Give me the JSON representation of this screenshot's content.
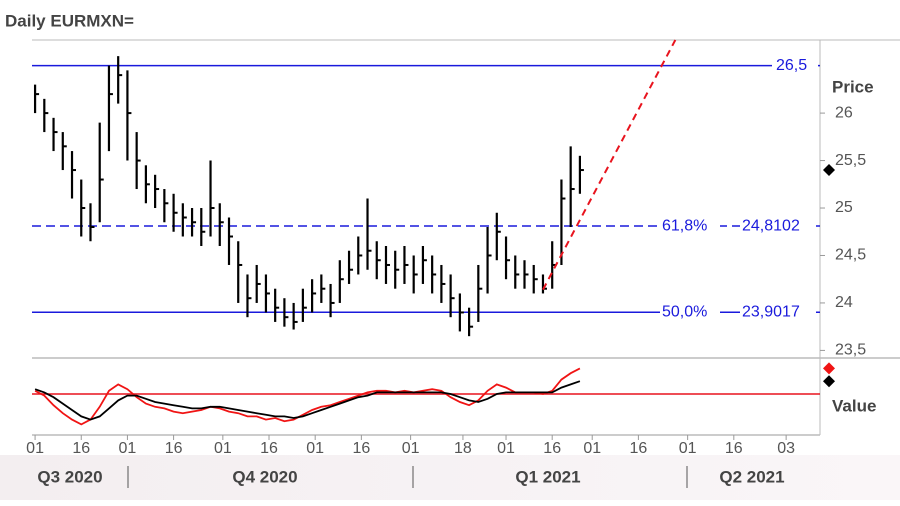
{
  "chart_data": {
    "type": "ohlc",
    "title": "Daily EURMXN=",
    "y_axis_label": "Price",
    "color": "#000000",
    "x": [
      "2020-09-01",
      "2020-09-04",
      "2020-09-07",
      "2020-09-10",
      "2020-09-13",
      "2020-09-16",
      "2020-09-19",
      "2020-09-22",
      "2020-09-25",
      "2020-09-28",
      "2020-10-01",
      "2020-10-04",
      "2020-10-07",
      "2020-10-10",
      "2020-10-13",
      "2020-10-16",
      "2020-10-19",
      "2020-10-22",
      "2020-10-25",
      "2020-10-28",
      "2020-10-31",
      "2020-11-03",
      "2020-11-06",
      "2020-11-09",
      "2020-11-12",
      "2020-11-15",
      "2020-11-18",
      "2020-11-21",
      "2020-11-24",
      "2020-11-27",
      "2020-11-30",
      "2020-12-03",
      "2020-12-06",
      "2020-12-09",
      "2020-12-12",
      "2020-12-15",
      "2020-12-18",
      "2020-12-21",
      "2020-12-24",
      "2020-12-27",
      "2020-12-30",
      "2021-01-02",
      "2021-01-05",
      "2021-01-08",
      "2021-01-11",
      "2021-01-14",
      "2021-01-17",
      "2021-01-20",
      "2021-01-23",
      "2021-01-26",
      "2021-01-29",
      "2021-02-01",
      "2021-02-04",
      "2021-02-07",
      "2021-02-10",
      "2021-02-13",
      "2021-02-16",
      "2021-02-19",
      "2021-02-22",
      "2021-02-25"
    ],
    "high": [
      26.3,
      26.15,
      25.95,
      25.8,
      25.6,
      25.3,
      25.05,
      25.9,
      26.5,
      26.6,
      26.45,
      25.8,
      25.45,
      25.35,
      25.2,
      25.15,
      25.05,
      25.0,
      25.0,
      25.5,
      25.05,
      24.9,
      24.65,
      24.3,
      24.4,
      24.3,
      24.15,
      24.05,
      24.0,
      24.15,
      24.25,
      24.3,
      24.2,
      24.45,
      24.55,
      24.7,
      25.1,
      24.65,
      24.6,
      24.55,
      24.6,
      24.5,
      24.6,
      24.5,
      24.4,
      24.3,
      24.1,
      23.95,
      24.4,
      24.8,
      24.95,
      24.7,
      24.5,
      24.45,
      24.4,
      24.3,
      24.65,
      25.3,
      25.65,
      25.55
    ],
    "low": [
      26.0,
      25.8,
      25.6,
      25.4,
      25.1,
      24.7,
      24.65,
      24.85,
      25.6,
      26.1,
      25.5,
      25.2,
      25.05,
      25.0,
      24.85,
      24.75,
      24.7,
      24.7,
      24.6,
      24.7,
      24.6,
      24.4,
      24.0,
      23.85,
      24.0,
      23.9,
      23.8,
      23.75,
      23.72,
      23.8,
      23.9,
      24.0,
      23.85,
      24.0,
      24.2,
      24.3,
      24.35,
      24.25,
      24.2,
      24.15,
      24.2,
      24.1,
      24.2,
      24.1,
      24.0,
      23.85,
      23.7,
      23.65,
      23.8,
      24.1,
      24.45,
      24.25,
      24.15,
      24.15,
      24.1,
      24.1,
      24.15,
      24.4,
      24.8,
      25.15
    ],
    "close": [
      26.2,
      26.0,
      25.8,
      25.65,
      25.4,
      25.0,
      24.8,
      25.3,
      26.2,
      26.4,
      26.0,
      25.5,
      25.25,
      25.2,
      25.05,
      24.95,
      24.9,
      24.85,
      24.75,
      25.0,
      24.85,
      24.7,
      24.4,
      24.05,
      24.2,
      24.1,
      23.95,
      23.85,
      23.8,
      23.95,
      24.1,
      24.15,
      24.0,
      24.25,
      24.35,
      24.5,
      24.55,
      24.45,
      24.4,
      24.35,
      24.4,
      24.3,
      24.45,
      24.3,
      24.2,
      24.05,
      23.9,
      23.75,
      24.15,
      24.5,
      24.75,
      24.45,
      24.3,
      24.3,
      24.25,
      24.15,
      24.4,
      25.1,
      25.2,
      25.4
    ],
    "xlim": [
      "2020-08-31",
      "2021-05-14"
    ],
    "ylim": [
      23.42,
      26.77
    ],
    "yticks": [
      {
        "value": 23.5,
        "label": "23,5"
      },
      24,
      {
        "value": 24.5,
        "label": "24,5"
      },
      25,
      {
        "value": 25.5,
        "label": "25,5"
      },
      26
    ],
    "xticks": [
      {
        "value": "2020-09-01",
        "label": "01"
      },
      {
        "value": "2020-09-16",
        "label": "16"
      },
      {
        "value": "2020-10-01",
        "label": "01"
      },
      {
        "value": "2020-10-16",
        "label": "16"
      },
      {
        "value": "2020-11-01",
        "label": "01"
      },
      {
        "value": "2020-11-16",
        "label": "16"
      },
      {
        "value": "2020-12-01",
        "label": "01"
      },
      {
        "value": "2020-12-16",
        "label": "16"
      },
      {
        "value": "2021-01-01",
        "label": "01"
      },
      {
        "value": "2021-01-18",
        "label": "18"
      },
      {
        "value": "2021-02-01",
        "label": "01"
      },
      {
        "value": "2021-02-16",
        "label": "16"
      },
      {
        "value": "2021-03-01",
        "label": "01"
      },
      {
        "value": "2021-03-16",
        "label": "16"
      },
      {
        "value": "2021-04-01",
        "label": "01"
      },
      {
        "value": "2021-04-16",
        "label": "16"
      },
      {
        "value": "2021-05-03",
        "label": "03"
      }
    ],
    "periods": [
      "Q3 2020",
      "Q4 2020",
      "Q1 2021",
      "Q2 2021"
    ],
    "hlines": [
      {
        "value": 26.5,
        "label": "26,5",
        "color": "#1a1adc"
      }
    ],
    "fib_levels": [
      {
        "pct": "61,8%",
        "value": 24.8102,
        "label": "24,8102",
        "color": "#1a1adc",
        "dashed": true
      },
      {
        "pct": "50,0%",
        "value": 23.9017,
        "label": "23,9017",
        "color": "#1a1adc",
        "dashed": false
      }
    ],
    "trend": {
      "x": [
        "2021-02-13",
        "2021-03-28"
      ],
      "values": [
        24.14,
        26.77
      ],
      "color": "#e8141e"
    },
    "indicator": {
      "y_axis_label": "Value",
      "ylim": [
        -1,
        1
      ],
      "zero_line": {
        "value": 0,
        "color": "#e8141e"
      },
      "series": [
        {
          "color": "#f01414",
          "values": [
            0.1,
            -0.05,
            -0.35,
            -0.6,
            -0.8,
            -0.95,
            -0.8,
            -0.4,
            0.1,
            0.3,
            0.15,
            -0.1,
            -0.3,
            -0.4,
            -0.45,
            -0.55,
            -0.6,
            -0.55,
            -0.5,
            -0.4,
            -0.45,
            -0.55,
            -0.6,
            -0.7,
            -0.7,
            -0.8,
            -0.75,
            -0.85,
            -0.8,
            -0.65,
            -0.5,
            -0.4,
            -0.35,
            -0.25,
            -0.15,
            -0.05,
            0.05,
            0.1,
            0.1,
            0.05,
            0.1,
            0.05,
            0.1,
            0.15,
            0.1,
            -0.1,
            -0.25,
            -0.35,
            -0.2,
            0.1,
            0.3,
            0.2,
            0.05,
            0.05,
            0.05,
            0.0,
            0.1,
            0.45,
            0.65,
            0.8
          ]
        },
        {
          "color": "#000000",
          "values": [
            0.15,
            0.05,
            -0.1,
            -0.3,
            -0.5,
            -0.7,
            -0.8,
            -0.7,
            -0.45,
            -0.2,
            -0.05,
            -0.05,
            -0.15,
            -0.25,
            -0.3,
            -0.35,
            -0.4,
            -0.45,
            -0.45,
            -0.4,
            -0.4,
            -0.45,
            -0.5,
            -0.55,
            -0.6,
            -0.65,
            -0.7,
            -0.7,
            -0.75,
            -0.7,
            -0.6,
            -0.5,
            -0.4,
            -0.3,
            -0.2,
            -0.1,
            -0.05,
            0.05,
            0.05,
            0.05,
            0.05,
            0.05,
            0.05,
            0.05,
            0.05,
            0.0,
            -0.1,
            -0.2,
            -0.25,
            -0.15,
            0.0,
            0.05,
            0.05,
            0.05,
            0.05,
            0.05,
            0.05,
            0.2,
            0.3,
            0.4
          ]
        }
      ]
    }
  }
}
